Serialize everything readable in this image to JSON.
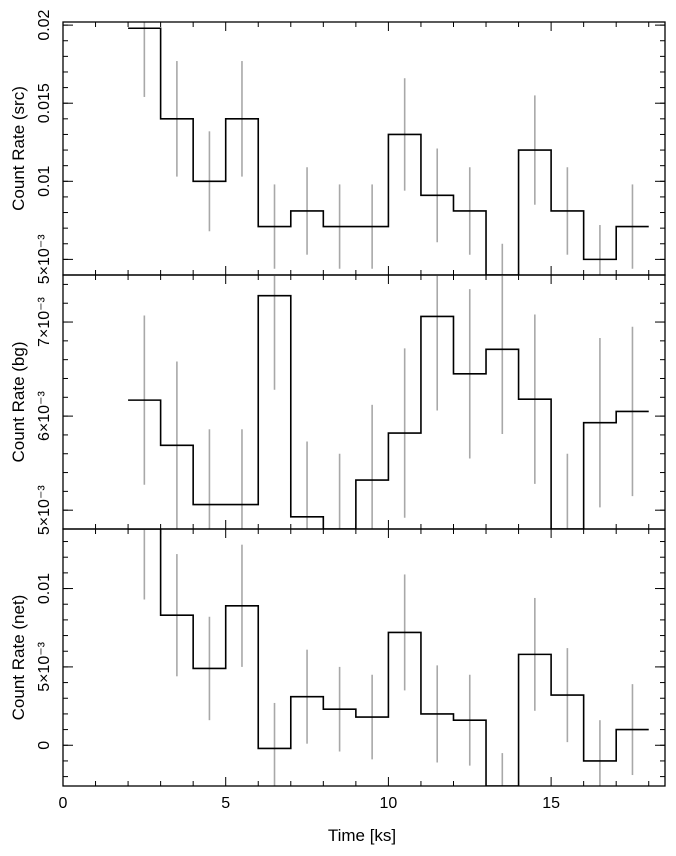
{
  "chart_data": {
    "type": "line",
    "xlabel": "Time [ks]",
    "xlim": [
      0,
      18.5
    ],
    "x_ticks": [
      0,
      5,
      10,
      15
    ],
    "x_tick_labels": [
      "0",
      "5",
      "10",
      "15"
    ],
    "bin_edges": [
      2,
      3,
      4,
      5,
      6,
      7,
      8,
      9,
      10,
      11,
      12,
      13,
      14,
      15,
      16,
      17,
      18
    ],
    "panels": [
      {
        "id": "src",
        "ylabel": "Count Rate (src)",
        "ylim": [
          0.004,
          0.0202
        ],
        "y_ticks": [
          0.005,
          0.01,
          0.015,
          0.02
        ],
        "y_tick_labels": [
          "5×10⁻³",
          "0.01",
          "0.015",
          "0.02"
        ],
        "values": [
          0.0198,
          0.014,
          0.01,
          0.014,
          0.0071,
          0.0081,
          0.0071,
          0.0071,
          0.013,
          0.0091,
          0.0081,
          0.004,
          0.012,
          0.0081,
          0.005,
          0.0071
        ],
        "errors": [
          0.0044,
          0.0037,
          0.0032,
          0.0037,
          0.0027,
          0.0028,
          0.0027,
          0.0027,
          0.0036,
          0.003,
          0.0028,
          0.002,
          0.0035,
          0.0028,
          0.0022,
          0.0027
        ]
      },
      {
        "id": "bg",
        "ylabel": "Count Rate (bg)",
        "ylim": [
          0.0048,
          0.0075
        ],
        "y_ticks": [
          0.005,
          0.006,
          0.007
        ],
        "y_tick_labels": [
          "5×10⁻³",
          "6×10⁻³",
          "7×10⁻³"
        ],
        "values": [
          0.00617,
          0.00569,
          0.00506,
          0.00506,
          0.00728,
          0.00493,
          0.0048,
          0.00532,
          0.00582,
          0.00706,
          0.00645,
          0.00671,
          0.00618,
          0.0048,
          0.00593,
          0.00605
        ],
        "errors": [
          0.0009,
          0.00089,
          0.0008,
          0.0008,
          0.001,
          0.0008,
          0.0008,
          0.0008,
          0.0009,
          0.001,
          0.0009,
          0.0009,
          0.0009,
          0.0008,
          0.0009,
          0.0009
        ]
      },
      {
        "id": "net",
        "ylabel": "Count Rate (net)",
        "ylim": [
          -0.0026,
          0.0138
        ],
        "y_ticks": [
          0,
          0.005,
          0.01
        ],
        "y_tick_labels": [
          "0",
          "5×10⁻³",
          "0.01"
        ],
        "values": [
          0.0138,
          0.0083,
          0.0049,
          0.0089,
          -0.0002,
          0.0031,
          0.0023,
          0.0018,
          0.0072,
          0.002,
          0.0016,
          -0.003,
          0.0058,
          0.0032,
          -0.001,
          0.001
        ],
        "errors": [
          0.0045,
          0.0039,
          0.0033,
          0.0039,
          0.0029,
          0.003,
          0.0027,
          0.0027,
          0.0037,
          0.0031,
          0.0029,
          0.0025,
          0.0036,
          0.003,
          0.0026,
          0.0029
        ]
      }
    ]
  }
}
